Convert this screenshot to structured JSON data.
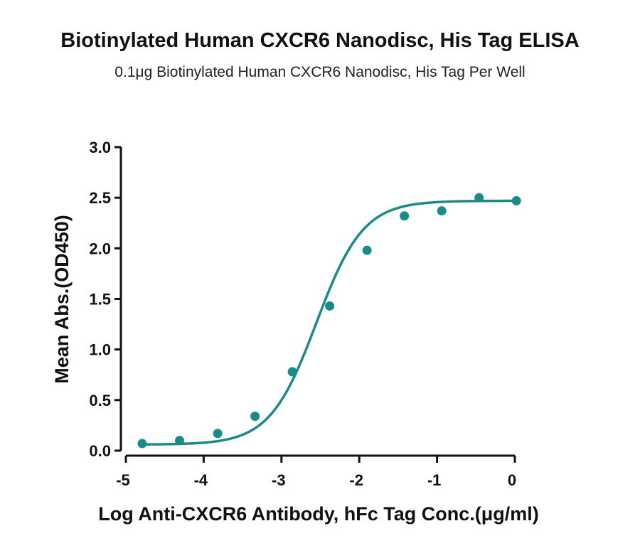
{
  "chart_data": {
    "type": "scatter",
    "title": "Biotinylated Human CXCR6 Nanodisc, His Tag ELISA",
    "subtitle": "0.1μg Biotinylated Human CXCR6 Nanodisc, His Tag Per Well",
    "xlabel": "Log Anti-CXCR6 Antibody, hFc Tag Conc.(μg/ml)",
    "ylabel": "Mean Abs.(OD450)",
    "xlim": [
      -5,
      0
    ],
    "ylim": [
      0,
      3.0
    ],
    "x_ticks": [
      "-5",
      "-4",
      "-3",
      "-2",
      "-1",
      "0"
    ],
    "y_ticks": [
      "0.0",
      "0.5",
      "1.0",
      "1.5",
      "2.0",
      "2.5",
      "3.0"
    ],
    "grid": false,
    "series_color": "#1a8a8a",
    "points": [
      {
        "x": -4.79,
        "y": 0.07
      },
      {
        "x": -4.31,
        "y": 0.1
      },
      {
        "x": -3.82,
        "y": 0.17
      },
      {
        "x": -3.34,
        "y": 0.34
      },
      {
        "x": -2.86,
        "y": 0.78
      },
      {
        "x": -2.38,
        "y": 1.43
      },
      {
        "x": -1.9,
        "y": 1.98
      },
      {
        "x": -1.42,
        "y": 2.32
      },
      {
        "x": -0.94,
        "y": 2.37
      },
      {
        "x": -0.46,
        "y": 2.5
      },
      {
        "x": 0.02,
        "y": 2.47
      }
    ],
    "fit": {
      "model": "4PL",
      "bottom": 0.06,
      "top": 2.47,
      "log_ec50": -2.55,
      "hill_slope": 1.45
    }
  }
}
